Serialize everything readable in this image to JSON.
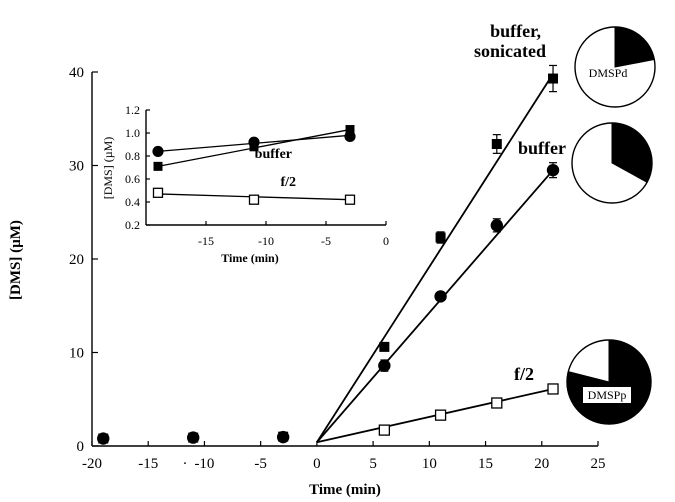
{
  "chart_data": [
    {
      "type": "scatter",
      "xlabel": "Time (min)",
      "ylabel": "[DMS] (µM)",
      "xlim": [
        -20,
        25
      ],
      "ylim": [
        0,
        40
      ],
      "x_ticks": [
        "-20",
        "-15",
        "-10",
        "-5",
        "0",
        "5",
        "10",
        "15",
        "20",
        "25"
      ],
      "y_ticks": [
        "0",
        "10",
        "20",
        "30",
        "40"
      ],
      "stray_mark": ".",
      "series": [
        {
          "name": "buffer, sonicated",
          "marker": "filled-square",
          "points": [
            [
              -19,
              0.8
            ],
            [
              -11,
              0.9
            ],
            [
              -3,
              1.0
            ],
            [
              6,
              10.6
            ],
            [
              11,
              22.3
            ],
            [
              16,
              32.3
            ],
            [
              21,
              39.3
            ]
          ],
          "errors": [
            0.3,
            0.3,
            0.3,
            0.4,
            0.6,
            1.0,
            1.4
          ],
          "fit": [
            [
              0,
              0.4
            ],
            [
              21,
              39.8
            ]
          ]
        },
        {
          "name": "buffer",
          "marker": "filled-circle",
          "points": [
            [
              -19,
              0.8
            ],
            [
              -11,
              0.9
            ],
            [
              -3,
              0.95
            ],
            [
              6,
              8.6
            ],
            [
              11,
              16.0
            ],
            [
              16,
              23.6
            ],
            [
              21,
              29.5
            ]
          ],
          "errors": [
            0.3,
            0.3,
            0.3,
            0.6,
            0.3,
            0.7,
            0.8
          ],
          "fit": [
            [
              0,
              0.4
            ],
            [
              21,
              29.5
            ]
          ]
        },
        {
          "name": "f/2",
          "marker": "open-square",
          "points": [
            [
              6,
              1.7
            ],
            [
              11,
              3.3
            ],
            [
              16,
              4.6
            ],
            [
              21,
              6.1
            ]
          ],
          "errors": [
            0,
            0,
            0,
            0
          ],
          "fit": [
            [
              0,
              0.4
            ],
            [
              21,
              6.1
            ]
          ]
        }
      ],
      "annotations": {
        "sonicated_line1": "buffer,",
        "sonicated_line2": "sonicated",
        "buffer": "buffer",
        "f2": "f/2"
      },
      "pies": [
        {
          "label": "DMSPd",
          "dark_fraction": 0.22
        },
        {
          "label": "",
          "dark_fraction": 0.33
        },
        {
          "label": "DMSPp",
          "dark_fraction": 0.79
        }
      ]
    },
    {
      "type": "scatter",
      "inset": true,
      "xlabel": "Time (min)",
      "ylabel": "[DMS] (µM)",
      "xlim": [
        -20,
        0
      ],
      "ylim": [
        0.2,
        1.2
      ],
      "x_ticks": [
        "-15",
        "-10",
        "-5",
        "0"
      ],
      "y_ticks": [
        "0.2",
        "0.4",
        "0.6",
        "0.8",
        "1.0",
        "1.2"
      ],
      "series": [
        {
          "name": "buffer, sonicated",
          "marker": "filled-square",
          "points": [
            [
              -19,
              0.71
            ],
            [
              -11,
              0.88
            ],
            [
              -3,
              1.03
            ]
          ],
          "fit": [
            [
              -19,
              0.71
            ],
            [
              -3,
              1.03
            ]
          ]
        },
        {
          "name": "buffer",
          "marker": "filled-circle",
          "points": [
            [
              -19,
              0.84
            ],
            [
              -11,
              0.92
            ],
            [
              -3,
              0.97
            ]
          ],
          "fit": [
            [
              -19,
              0.84
            ],
            [
              -3,
              0.98
            ]
          ]
        },
        {
          "name": "f/2",
          "marker": "open-square",
          "points": [
            [
              -19,
              0.48
            ],
            [
              -11,
              0.42
            ],
            [
              -3,
              0.42
            ]
          ],
          "fit": [
            [
              -19,
              0.47
            ],
            [
              -3,
              0.42
            ]
          ]
        }
      ],
      "annotations": {
        "buffer": "buffer",
        "f2": "f/2"
      }
    }
  ]
}
